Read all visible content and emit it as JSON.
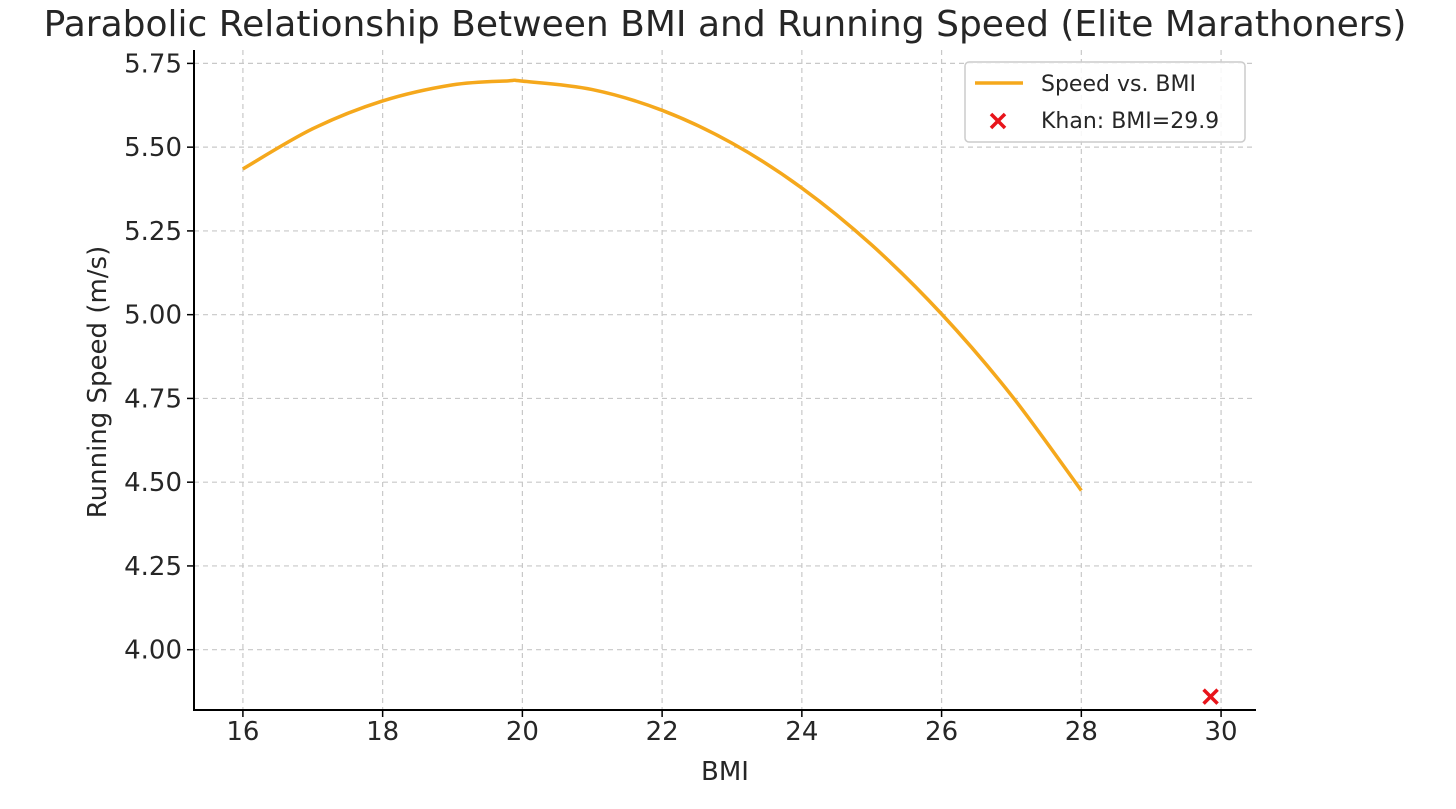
{
  "chart_data": {
    "type": "line",
    "title": "Parabolic Relationship Between BMI and Running Speed (Elite Marathoners)",
    "xlabel": "BMI",
    "ylabel": "Running Speed (m/s)",
    "xlim": [
      15.3,
      30.5
    ],
    "ylim": [
      3.82,
      5.79
    ],
    "xticks": [
      16,
      18,
      20,
      22,
      24,
      26,
      28,
      30
    ],
    "yticks": [
      4.0,
      4.25,
      4.5,
      4.75,
      5.0,
      5.25,
      5.5,
      5.75
    ],
    "xtick_labels": [
      "16",
      "18",
      "20",
      "22",
      "24",
      "26",
      "28",
      "30"
    ],
    "ytick_labels": [
      "4.00",
      "4.25",
      "4.50",
      "4.75",
      "5.00",
      "5.25",
      "5.50",
      "5.75"
    ],
    "grid": true,
    "legend_position": "top-right",
    "series": [
      {
        "name": "Speed vs. BMI",
        "kind": "line",
        "color": "#f5a81c",
        "x": [
          16,
          17,
          18,
          19,
          19.8,
          20,
          21,
          22,
          23,
          24,
          25,
          26,
          27,
          28
        ],
        "y": [
          5.435,
          5.555,
          5.638,
          5.686,
          5.698,
          5.697,
          5.672,
          5.61,
          5.512,
          5.378,
          5.208,
          5.002,
          4.759,
          4.475
        ]
      },
      {
        "name": "Khan: BMI=29.9",
        "kind": "scatter",
        "marker": "x",
        "color": "#e8141b",
        "x": [
          29.85
        ],
        "y": [
          3.86
        ]
      }
    ]
  }
}
